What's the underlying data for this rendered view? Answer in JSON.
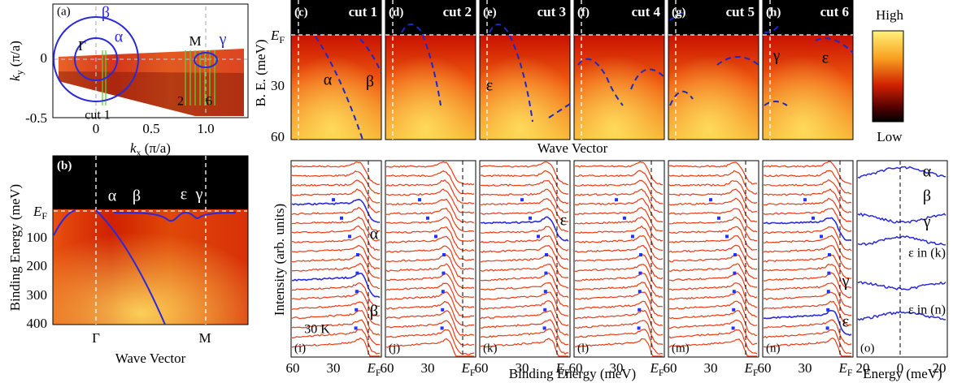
{
  "panel_a": {
    "label": "(a)",
    "ylabel": {
      "main": "k",
      "sub": "y",
      "rest": " (π/a)"
    },
    "xlabel": {
      "main": "k",
      "sub": "x",
      "rest": " (π/a)"
    },
    "yticks": [
      "0",
      "-0.5"
    ],
    "xticks": [
      "0",
      "0.5",
      "1.0"
    ],
    "points": [
      "Γ",
      "M"
    ],
    "bands": [
      "β",
      "α",
      "γ"
    ],
    "cuts": [
      "cut 1",
      "2",
      "6"
    ]
  },
  "panel_b": {
    "label": "(b)",
    "ylabel": "Binding Energy (meV)",
    "xlabel": "Wave Vector",
    "yticks": [
      {
        "main": "E",
        "sub": "F"
      },
      "100",
      "200",
      "300",
      "400"
    ],
    "xticks": [
      "Γ",
      "M"
    ],
    "bands": [
      "α",
      "β",
      "ε",
      "γ"
    ]
  },
  "cuts": {
    "ylabel": "B. E. (meV)",
    "yticks": [
      {
        "main": "E",
        "sub": "F"
      },
      "30",
      "60"
    ],
    "xlabel": "Wave Vector",
    "panels": [
      {
        "label": "(c)",
        "title": "cut 1",
        "bands": [
          "α",
          "β"
        ]
      },
      {
        "label": "(d)",
        "title": "cut 2"
      },
      {
        "label": "(e)",
        "title": "cut 3",
        "bands": [
          "ε"
        ]
      },
      {
        "label": "(f)",
        "title": "cut 4"
      },
      {
        "label": "(g)",
        "title": "cut 5"
      },
      {
        "label": "(h)",
        "title": "cut 6",
        "bands": [
          "γ",
          "ε"
        ]
      }
    ]
  },
  "colorbar": {
    "high": "High",
    "low": "Low"
  },
  "edc": {
    "ylabel": "Intensity (arb. units)",
    "xlabel": "Binding Energy (meV)",
    "xticks": [
      "60",
      "30",
      {
        "main": "E",
        "sub": "F"
      }
    ],
    "panels": [
      {
        "label": "(i)",
        "bands": [
          "α",
          "β"
        ],
        "note": "30 K"
      },
      {
        "label": "(j)"
      },
      {
        "label": "(k)",
        "bands": [
          "ε"
        ]
      },
      {
        "label": "(l)"
      },
      {
        "label": "(m)"
      },
      {
        "label": "(n)",
        "bands": [
          "γ",
          "ε"
        ]
      }
    ]
  },
  "panel_o": {
    "label": "(o)",
    "xlabel": "Energy (meV)",
    "xticks": [
      "20",
      "0",
      "20"
    ],
    "curves": [
      "α",
      "β",
      "γ",
      "ε in (k)",
      "ε in (n)"
    ]
  }
}
